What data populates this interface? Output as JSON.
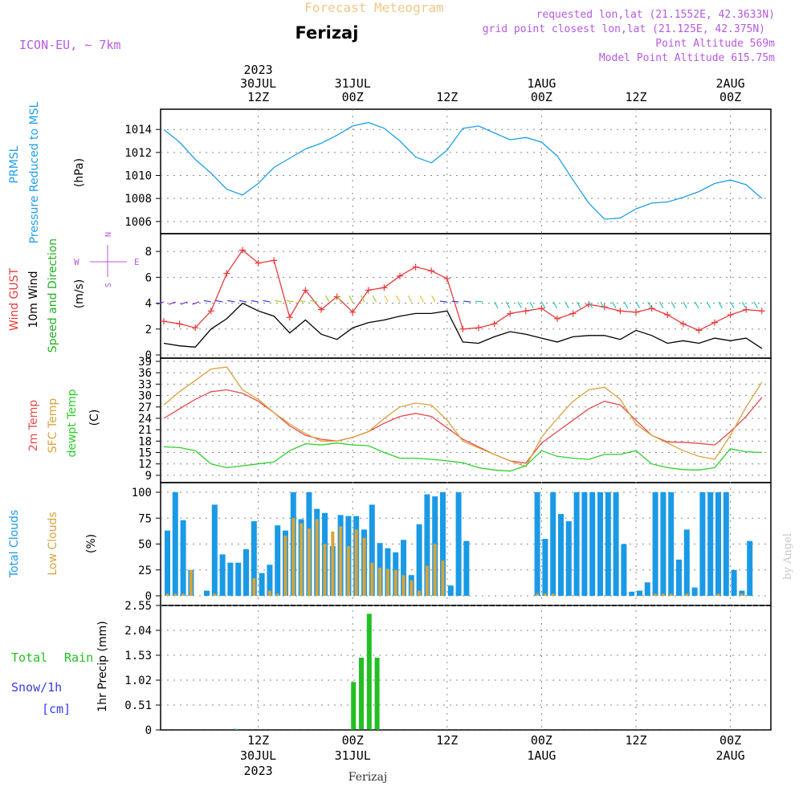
{
  "header": {
    "subtitle": "Forecast Meteogram",
    "station": "Ferizaj",
    "model": "ICON-EU, ~ 7km",
    "requested": "requested lon,lat (21.1552E, 42.3633N)",
    "gridpoint": "grid point closest lon,lat (21.125E, 42.375N)",
    "point_alt": "Point Altitude 569m",
    "model_alt": "Model Point Altitude 615.75m",
    "footer": "Ferizaj",
    "credit": "by Angel"
  },
  "colors": {
    "pressure": "#1e9fea",
    "gust": "#e83b3b",
    "wind": "#000000",
    "windlabel": "#22b022",
    "temp2m": "#e84a4a",
    "sfc": "#dca13a",
    "dewpt": "#2ad12a",
    "total_cloud": "#1a9ae6",
    "low_cloud": "#d7a43a",
    "rain": "#22bf22",
    "snow": "#3a3ae6",
    "purple": "#b45ae0",
    "header": "#f0c888"
  },
  "top_axis": [
    {
      "l1": "2023",
      "l2": "30JUL",
      "l3": "12Z",
      "h": 12
    },
    {
      "l1": "",
      "l2": "31JUL",
      "l3": "00Z",
      "h": 24
    },
    {
      "l1": "",
      "l2": "",
      "l3": "12Z",
      "h": 36
    },
    {
      "l1": "",
      "l2": "1AUG",
      "l3": "00Z",
      "h": 48
    },
    {
      "l1": "",
      "l2": "",
      "l3": "12Z",
      "h": 60
    },
    {
      "l1": "",
      "l2": "2AUG",
      "l3": "00Z",
      "h": 72
    }
  ],
  "bottom_axis": [
    {
      "l1": "12Z",
      "l2": "30JUL",
      "l3": "2023",
      "h": 12
    },
    {
      "l1": "00Z",
      "l2": "31JUL",
      "l3": "",
      "h": 24
    },
    {
      "l1": "12Z",
      "l2": "",
      "l3": "",
      "h": 36
    },
    {
      "l1": "00Z",
      "l2": "1AUG",
      "l3": "",
      "h": 48
    },
    {
      "l1": "12Z",
      "l2": "",
      "l3": "",
      "h": 60
    },
    {
      "l1": "00Z",
      "l2": "2AUG",
      "l3": "",
      "h": 72
    }
  ],
  "labels": {
    "p1_a": "PRMSL",
    "p1_b": "Pressure Reduced to MSL",
    "p1_unit": "(hPa)",
    "p2_a": "Wind GUST",
    "p2_b": "10m Wind",
    "p2_c": "Speed and Direction",
    "p2_unit": "(m/s)",
    "compass_n": "N",
    "compass_s": "S",
    "compass_e": "E",
    "compass_w": "W",
    "p3_a": "2m Temp",
    "p3_b": "SFC Temp",
    "p3_c": "dewpt Temp",
    "p3_unit": "(C)",
    "p4_a": "Total Clouds",
    "p4_b": "Low Clouds",
    "p4_unit": "(%)",
    "p5_a": "Total",
    "p5_b": "Rain",
    "p5_c": "Snow/1h",
    "p5_d": "[cm]",
    "p5_unit": "1hr Precip (mm)"
  },
  "chart_data": [
    {
      "type": "line",
      "title": "PRMSL",
      "ylabel": "Pressure Reduced to MSL (hPa)",
      "x_hours": [
        0,
        2,
        4,
        6,
        8,
        10,
        12,
        14,
        16,
        18,
        20,
        22,
        24,
        26,
        28,
        30,
        32,
        34,
        36,
        38,
        40,
        42,
        44,
        46,
        48,
        50,
        52,
        54,
        56,
        58,
        60,
        62,
        64,
        66,
        68,
        70,
        72,
        74,
        76
      ],
      "series": [
        {
          "name": "PRMSL",
          "values": [
            1014,
            1012.9,
            1011.4,
            1010.2,
            1008.8,
            1008.3,
            1009.3,
            1010.7,
            1011.5,
            1012.3,
            1012.8,
            1013.5,
            1014.3,
            1014.6,
            1014.1,
            1013.0,
            1011.6,
            1011.1,
            1012.2,
            1014.1,
            1014.3,
            1013.7,
            1013.1,
            1013.3,
            1012.9,
            1011.7,
            1009.6,
            1007.6,
            1006.2,
            1006.3,
            1007.1,
            1007.6,
            1007.7,
            1008.1,
            1008.6,
            1009.3,
            1009.6,
            1009.2,
            1008.0
          ]
        }
      ],
      "yticks": [
        1006,
        1008,
        1010,
        1012,
        1014
      ],
      "ylim": [
        1005.5,
        1015.2
      ]
    },
    {
      "type": "line",
      "title": "Wind GUST / 10m Wind Speed and Direction",
      "ylabel": "(m/s)",
      "x_hours": [
        0,
        2,
        4,
        6,
        8,
        10,
        12,
        14,
        16,
        18,
        20,
        22,
        24,
        26,
        28,
        30,
        32,
        34,
        36,
        38,
        40,
        42,
        44,
        46,
        48,
        50,
        52,
        54,
        56,
        58,
        60,
        62,
        64,
        66,
        68,
        70,
        72,
        74,
        76
      ],
      "series": [
        {
          "name": "Wind GUST",
          "values": [
            2.6,
            2.4,
            2.1,
            3.4,
            6.3,
            8.1,
            7.1,
            7.3,
            2.9,
            5.0,
            3.5,
            4.5,
            3.3,
            5.0,
            5.2,
            6.1,
            6.8,
            6.5,
            5.9,
            2.0,
            2.1,
            2.4,
            3.2,
            3.4,
            3.6,
            2.8,
            3.2,
            3.9,
            3.7,
            3.4,
            3.3,
            3.6,
            3.1,
            2.4,
            1.9,
            2.5,
            3.1,
            3.5,
            3.4
          ]
        },
        {
          "name": "10m Wind",
          "values": [
            0.9,
            0.7,
            0.6,
            2.0,
            2.8,
            4.0,
            3.4,
            3.0,
            1.7,
            2.7,
            1.6,
            1.2,
            2.1,
            2.5,
            2.7,
            3.0,
            3.2,
            3.2,
            3.4,
            1.0,
            0.9,
            1.4,
            1.8,
            1.6,
            1.3,
            1.0,
            1.4,
            1.5,
            1.5,
            1.2,
            1.9,
            1.5,
            0.9,
            1.1,
            0.9,
            1.3,
            1.1,
            1.3,
            0.5
          ]
        }
      ],
      "yticks": [
        0,
        2,
        4,
        6,
        8
      ],
      "ylim": [
        0,
        9
      ]
    },
    {
      "type": "line",
      "title": "2m Temp / SFC Temp / dewpt Temp",
      "ylabel": "(C)",
      "x_hours": [
        0,
        2,
        4,
        6,
        8,
        10,
        12,
        14,
        16,
        18,
        20,
        22,
        24,
        26,
        28,
        30,
        32,
        34,
        36,
        38,
        40,
        42,
        44,
        46,
        48,
        50,
        52,
        54,
        56,
        58,
        60,
        62,
        64,
        66,
        68,
        70,
        72,
        74,
        76
      ],
      "series": [
        {
          "name": "2m Temp",
          "values": [
            24,
            26.5,
            29,
            31,
            31.5,
            30.6,
            28.5,
            25.5,
            22,
            19.5,
            18.5,
            18,
            19,
            20.5,
            22.7,
            24.5,
            25.3,
            24.5,
            21.5,
            18.5,
            16.5,
            14.5,
            12.8,
            12.2,
            17.5,
            20.5,
            23.5,
            26.5,
            28.5,
            27.5,
            23.5,
            19.5,
            17.8,
            17.7,
            17.4,
            17.0,
            20.5,
            24.5,
            29.5
          ]
        },
        {
          "name": "SFC Temp",
          "values": [
            27.5,
            31,
            34,
            37,
            37.5,
            31.5,
            29,
            25.5,
            22.5,
            20,
            18,
            18,
            19,
            20.5,
            24,
            27,
            28,
            27.5,
            23.5,
            18,
            16.2,
            14.5,
            12.8,
            11.3,
            19,
            24,
            28.5,
            31.5,
            32.2,
            29,
            22.5,
            19.5,
            17.5,
            15.5,
            14,
            13.2,
            19.5,
            27,
            33.5
          ]
        },
        {
          "name": "dewpt Temp",
          "values": [
            16.5,
            16.3,
            15.5,
            12,
            11,
            11.5,
            12,
            12.5,
            15.5,
            17.3,
            17,
            17.5,
            17,
            16.8,
            15,
            13.5,
            13.5,
            13.2,
            12.8,
            12.3,
            11,
            10.4,
            10.1,
            11.5,
            15.5,
            14,
            13.5,
            13.2,
            14.5,
            14.5,
            15.5,
            12,
            11,
            10.5,
            10.4,
            11,
            16,
            15.2,
            15
          ]
        }
      ],
      "yticks": [
        9,
        12,
        15,
        18,
        21,
        24,
        27,
        30,
        33,
        36,
        39
      ],
      "ylim": [
        7.5,
        39
      ]
    },
    {
      "type": "bar",
      "title": "Total Clouds / Low Clouds",
      "ylabel": "(%)",
      "x_hours": [
        0,
        1,
        2,
        3,
        4,
        5,
        6,
        7,
        8,
        9,
        10,
        11,
        12,
        13,
        14,
        15,
        16,
        17,
        18,
        19,
        20,
        21,
        22,
        23,
        24,
        25,
        26,
        27,
        28,
        29,
        30,
        31,
        32,
        33,
        34,
        35,
        36,
        37,
        38,
        39,
        40,
        41,
        42,
        43,
        44,
        45,
        46,
        47,
        48,
        49,
        50,
        51,
        52,
        53,
        54,
        55,
        56,
        57,
        58,
        59,
        60,
        61,
        62,
        63,
        64,
        65,
        66,
        67,
        68,
        69,
        70,
        71,
        72,
        73,
        74,
        75,
        76
      ],
      "series": [
        {
          "name": "Total Clouds",
          "values": [
            63,
            100,
            73,
            25,
            0,
            5,
            88,
            40,
            32,
            32,
            45,
            72,
            22,
            30,
            68,
            63,
            100,
            74,
            100,
            84,
            80,
            48,
            78,
            77,
            77,
            64,
            88,
            51,
            46,
            42,
            54,
            20,
            69,
            98,
            96,
            100,
            10,
            100,
            53,
            0,
            0,
            0,
            0,
            0,
            0,
            0,
            0,
            100,
            55,
            100,
            79,
            72,
            100,
            100,
            100,
            100,
            100,
            100,
            50,
            4,
            5,
            13,
            100,
            100,
            100,
            35,
            64,
            8,
            100,
            100,
            100,
            100,
            25,
            5,
            53,
            0,
            0
          ]
        },
        {
          "name": "Low Clouds",
          "values": [
            2,
            2,
            2,
            25,
            0,
            0,
            2,
            0,
            0,
            0,
            0,
            17,
            0,
            5,
            2,
            58,
            75,
            70,
            65,
            74,
            50,
            62,
            67,
            48,
            64,
            56,
            32,
            27,
            26,
            25,
            20,
            15,
            5,
            29,
            50,
            34,
            0,
            0,
            0,
            0,
            0,
            0,
            0,
            0,
            0,
            0,
            0,
            2,
            2,
            2,
            0,
            0,
            0,
            0,
            0,
            0,
            0,
            0,
            0,
            0,
            0,
            0,
            2,
            2,
            2,
            0,
            2,
            0,
            0,
            0,
            2,
            0,
            0,
            2,
            0,
            0,
            0
          ]
        }
      ],
      "yticks": [
        0,
        25,
        50,
        75,
        100
      ],
      "ylim": [
        0,
        108
      ]
    },
    {
      "type": "bar",
      "title": "Total Rain",
      "ylabel": "1hr Precip (mm)",
      "x_hours": [
        9,
        24,
        25,
        26,
        27
      ],
      "series": [
        {
          "name": "Total Rain",
          "values": [
            0.02,
            0.98,
            1.48,
            2.38,
            1.48
          ]
        }
      ],
      "yticks": [
        0,
        0.51,
        1.02,
        1.53,
        2.04,
        2.55
      ],
      "ylim": [
        0,
        2.6
      ]
    }
  ]
}
